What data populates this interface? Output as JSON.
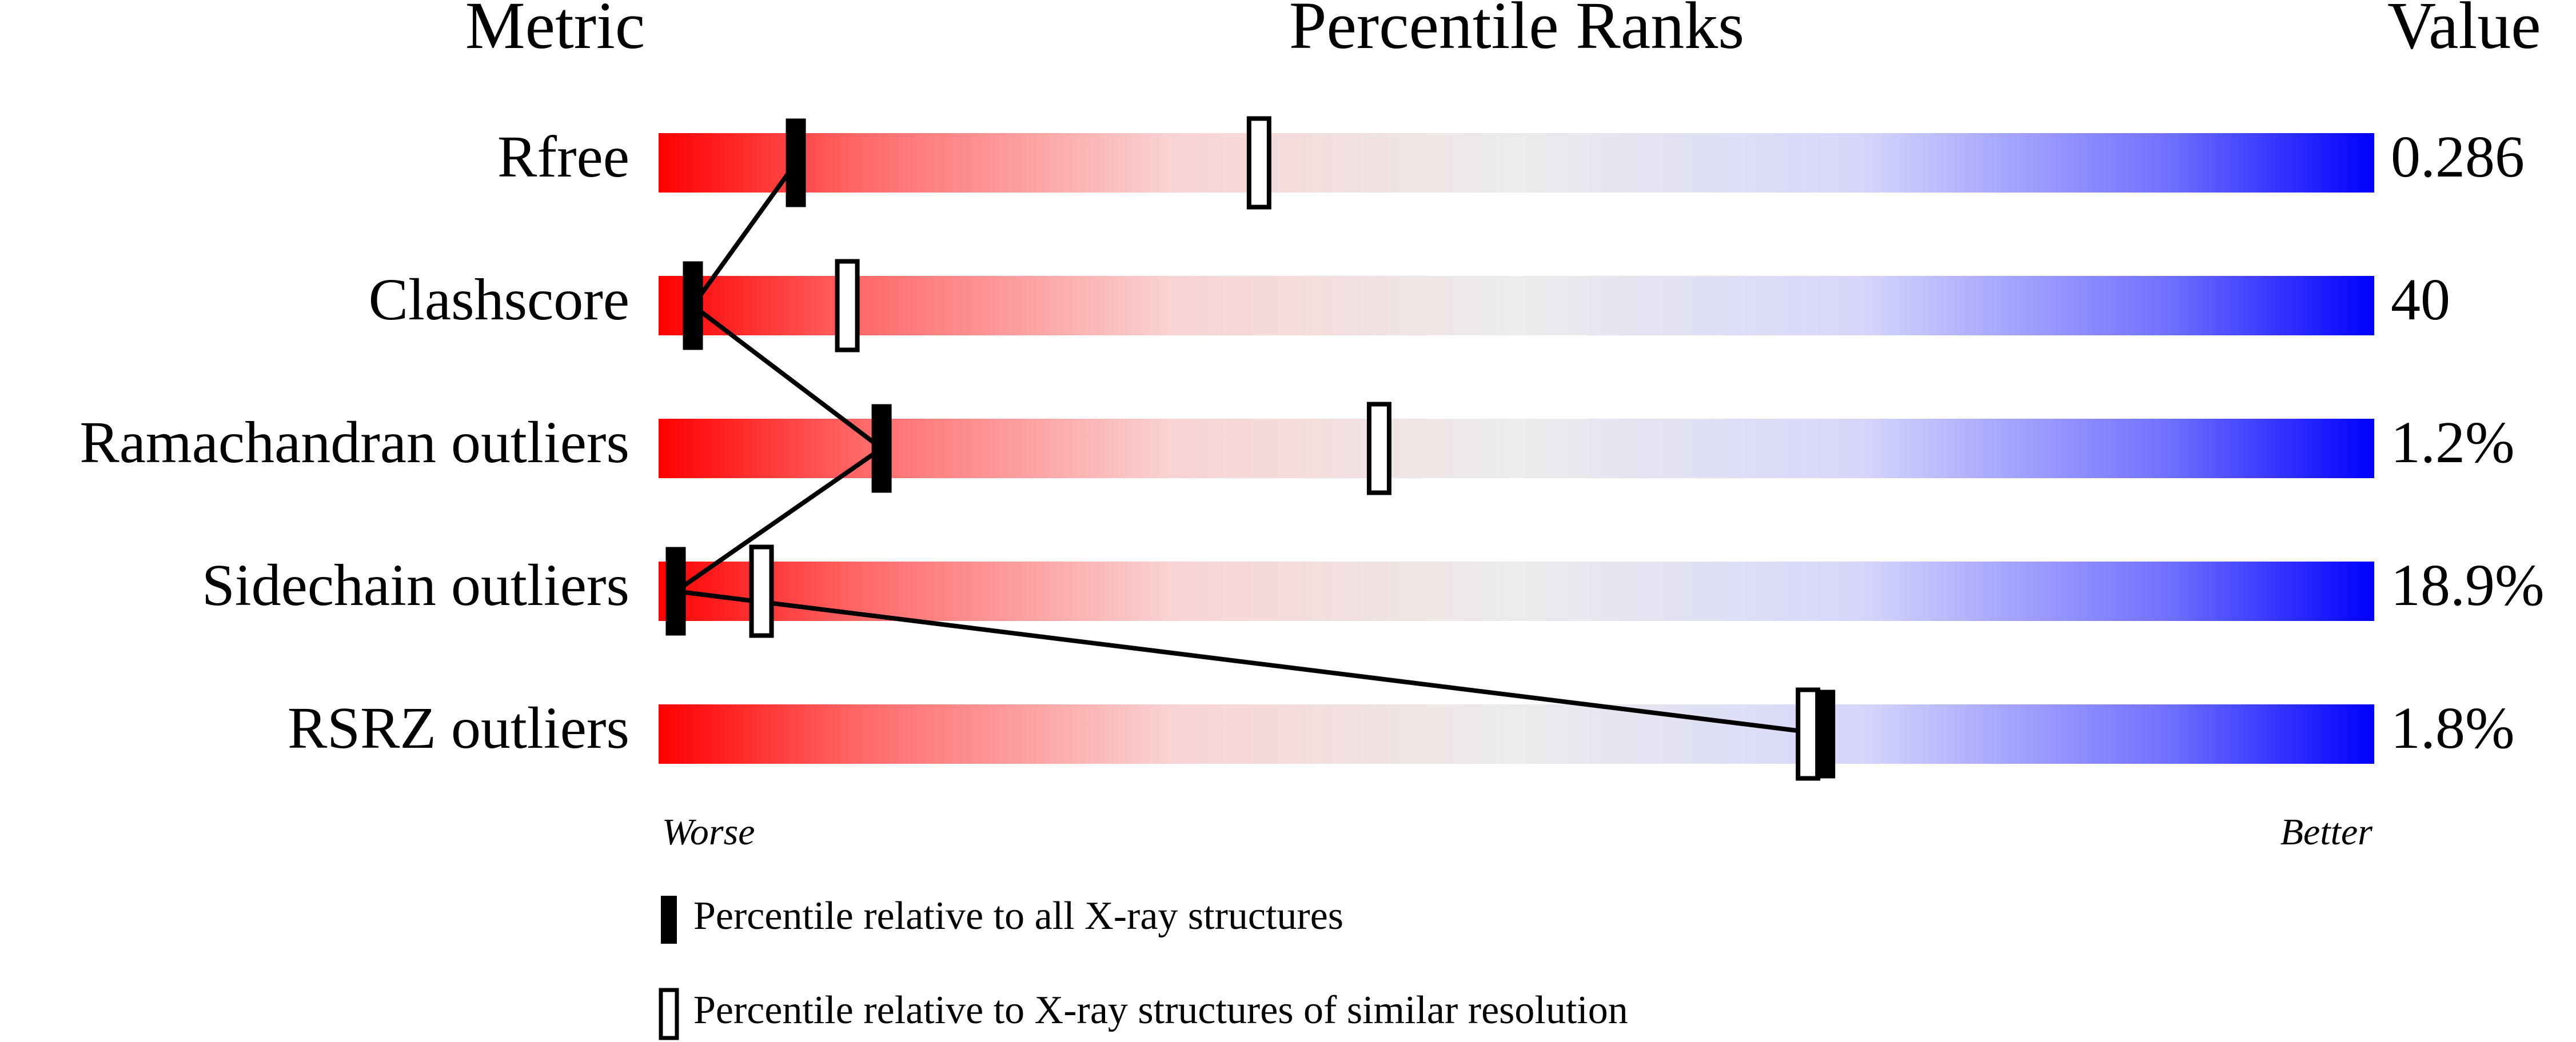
{
  "chart_data": {
    "type": "percentile",
    "headers": {
      "metric": "Metric",
      "ranks": "Percentile Ranks",
      "value": "Value"
    },
    "categories": [
      "Rfree",
      "Clashscore",
      "Ramachandran outliers",
      "Sidechain outliers",
      "RSRZ outliers"
    ],
    "metric_values": [
      "0.286",
      "40",
      "1.2%",
      "18.9%",
      "1.8%"
    ],
    "series": [
      {
        "name": "Percentile relative to all X-ray structures",
        "style": "filled",
        "color": "#000000",
        "values": [
          8,
          2,
          13,
          1,
          68
        ]
      },
      {
        "name": "Percentile relative to X-ray structures of similar resolution",
        "style": "outline",
        "color": "#000000",
        "values": [
          35,
          11,
          42,
          6,
          67
        ]
      }
    ],
    "xlim": [
      0,
      100
    ],
    "axis_low_label": "Worse",
    "axis_high_label": "Better"
  }
}
